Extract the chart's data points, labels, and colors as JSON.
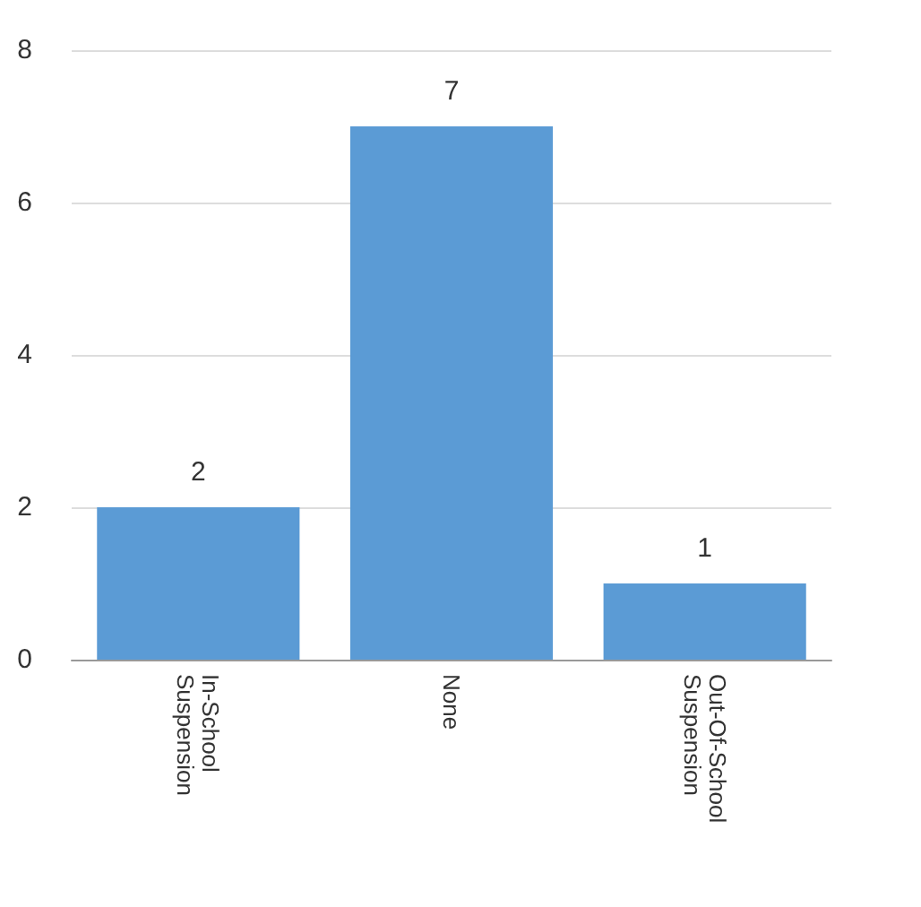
{
  "chart_data": {
    "type": "bar",
    "categories": [
      "In-School Suspension",
      "None",
      "Out-Of-School Suspension"
    ],
    "values": [
      2,
      7,
      1
    ],
    "color": "#5b9bd5",
    "ylim": [
      0,
      8
    ],
    "yticks": [
      0,
      2,
      4,
      6,
      8
    ],
    "grid": "y",
    "data_labels": true
  }
}
